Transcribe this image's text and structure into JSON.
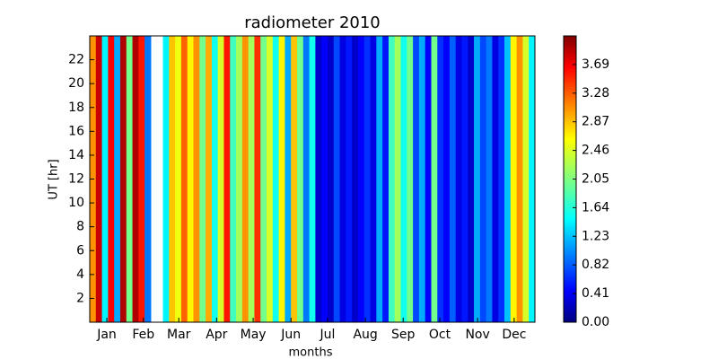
{
  "chart_data": {
    "type": "heatmap",
    "title": "radiometer 2010",
    "x_label": "months",
    "y_label": "UT [hr]",
    "x": [
      1,
      6,
      11,
      16,
      21,
      26,
      31,
      36,
      41,
      46,
      51,
      56,
      61,
      66,
      71,
      76,
      81,
      86,
      91,
      96,
      101,
      106,
      111,
      116,
      121,
      126,
      131,
      136,
      141,
      146,
      151,
      156,
      161,
      166,
      171,
      176,
      181,
      186,
      191,
      196,
      201,
      206,
      211,
      216,
      221,
      226,
      231,
      236,
      241,
      246,
      251,
      256,
      261,
      266,
      271,
      276,
      281,
      286,
      291,
      296,
      301,
      306,
      311,
      316,
      321,
      326,
      331,
      336,
      341,
      346,
      351,
      356,
      361
    ],
    "values": [
      3.0,
      3.8,
      1.5,
      3.6,
      1.2,
      3.9,
      2.0,
      3.9,
      3.5,
      1.0,
      null,
      null,
      1.5,
      2.8,
      2.5,
      3.2,
      2.6,
      3.0,
      2.0,
      2.9,
      1.6,
      2.4,
      3.5,
      1.8,
      2.2,
      3.0,
      2.2,
      3.4,
      2.0,
      2.4,
      1.6,
      2.6,
      1.2,
      2.8,
      2.0,
      1.0,
      1.6,
      0.3,
      0.5,
      0.3,
      0.8,
      0.4,
      0.6,
      0.3,
      0.5,
      0.7,
      0.4,
      1.2,
      0.6,
      1.8,
      2.2,
      1.6,
      2.0,
      0.8,
      1.2,
      0.5,
      2.0,
      0.7,
      0.5,
      0.9,
      0.4,
      0.6,
      0.3,
      1.2,
      0.8,
      1.0,
      0.4,
      0.7,
      1.3,
      2.6,
      3.0,
      2.4,
      1.5
    ],
    "xlim": [
      1,
      366
    ],
    "xticks": [
      {
        "value": 15,
        "label": "Jan"
      },
      {
        "value": 45,
        "label": "Feb"
      },
      {
        "value": 74,
        "label": "Mar"
      },
      {
        "value": 105,
        "label": "Apr"
      },
      {
        "value": 135,
        "label": "May"
      },
      {
        "value": 166,
        "label": "Jun"
      },
      {
        "value": 196,
        "label": "Jul"
      },
      {
        "value": 227,
        "label": "Aug"
      },
      {
        "value": 258,
        "label": "Sep"
      },
      {
        "value": 288,
        "label": "Oct"
      },
      {
        "value": 319,
        "label": "Nov"
      },
      {
        "value": 349,
        "label": "Dec"
      }
    ],
    "ylim": [
      0,
      24
    ],
    "yticks": [
      2,
      4,
      6,
      8,
      10,
      12,
      14,
      16,
      18,
      20,
      22
    ],
    "clim": [
      0,
      4.1
    ],
    "colormap": "jet",
    "cticks": [
      {
        "value": 0,
        "label": "0.00"
      },
      0.41,
      0.82,
      1.23,
      1.64,
      2.05,
      2.46,
      2.87,
      3.28,
      3.69
    ]
  }
}
